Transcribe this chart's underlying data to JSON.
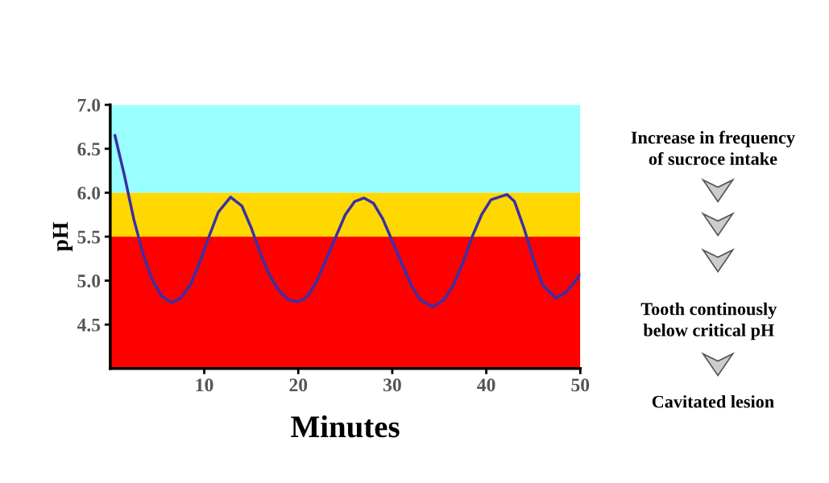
{
  "chart_data": {
    "type": "line",
    "xlabel": "Minutes",
    "ylabel": "pH",
    "xlim": [
      0,
      50
    ],
    "ylim": [
      4.0,
      7.0
    ],
    "xticks": [
      10,
      20,
      30,
      40,
      50
    ],
    "yticks": [
      4.5,
      {
        "value": 5,
        "label": "5.0"
      },
      5.5,
      {
        "value": 6,
        "label": "6.0"
      },
      6.5,
      {
        "value": 7,
        "label": "7.0"
      }
    ],
    "grid": false,
    "legend": false,
    "marker": "none",
    "line_style": "solid",
    "bands": [
      {
        "axis": "y",
        "from": 6.0,
        "to": 7.0,
        "color": "#99ffff"
      },
      {
        "axis": "y",
        "from": 5.5,
        "to": 6.0,
        "color": "#ffd800"
      },
      {
        "axis": "y",
        "from": 4.0,
        "to": 5.5,
        "color": "#ff0000"
      }
    ],
    "series": [
      {
        "color": "#3b2fa8",
        "x": [
          0.5,
          1.5,
          2.5,
          3.5,
          4.5,
          5.5,
          6.5,
          7.5,
          8.5,
          9.5,
          10.5,
          11.5,
          12.8,
          14,
          15,
          16,
          17,
          18,
          19,
          20,
          21,
          22,
          23,
          24,
          25,
          26,
          27,
          28,
          29,
          30,
          31,
          32,
          33,
          34.3,
          35.5,
          36.5,
          37.5,
          38.5,
          39.5,
          40.5,
          42.2,
          43,
          44,
          45,
          46,
          47.4,
          48.5,
          49.5,
          50
        ],
        "values": [
          6.65,
          6.2,
          5.7,
          5.3,
          5.0,
          4.82,
          4.75,
          4.8,
          4.95,
          5.2,
          5.5,
          5.78,
          5.95,
          5.85,
          5.6,
          5.3,
          5.05,
          4.88,
          4.78,
          4.76,
          4.82,
          5.0,
          5.25,
          5.5,
          5.75,
          5.9,
          5.94,
          5.88,
          5.7,
          5.45,
          5.2,
          4.95,
          4.78,
          4.7,
          4.78,
          4.95,
          5.2,
          5.5,
          5.75,
          5.92,
          5.98,
          5.9,
          5.6,
          5.25,
          4.95,
          4.8,
          4.87,
          5.0,
          5.07
        ]
      }
    ],
    "annotations": [
      "Increase in frequency\nof sucroce intake",
      "Tooth continously\nbelow critical pH",
      "Cavitated lesion"
    ]
  }
}
